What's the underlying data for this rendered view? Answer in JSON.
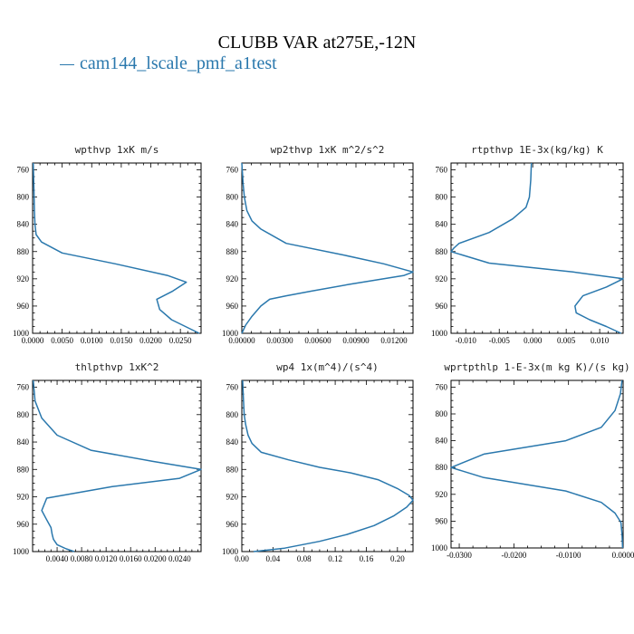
{
  "title": "CLUBB VAR at275E,-12N",
  "legend": {
    "label": "cam144_lscale_pmf_a1test",
    "color": "#2a78ad"
  },
  "chart_data": [
    {
      "type": "line",
      "title": "wpthvp  1xK m/s",
      "xlim": [
        0,
        0.0285
      ],
      "ylim": [
        750,
        1000
      ],
      "xticks": [
        0.0,
        0.005,
        0.01,
        0.015,
        0.02,
        0.025
      ],
      "xtick_labels": [
        "0.0000",
        "0.0050",
        "0.0100",
        "0.0150",
        "0.0200",
        "0.0250"
      ],
      "yticks": [
        760,
        800,
        840,
        880,
        920,
        960,
        1000
      ],
      "series": [
        {
          "x": [
            0.0001,
            0.0002,
            0.0003,
            0.0004,
            0.0006,
            0.0015,
            0.005,
            0.014,
            0.0228,
            0.026,
            0.0237,
            0.021,
            0.0215,
            0.0235,
            0.0282
          ],
          "y": [
            750,
            780,
            820,
            840,
            855,
            866,
            882,
            898,
            915,
            925,
            938,
            950,
            965,
            980,
            1000
          ]
        }
      ]
    },
    {
      "type": "line",
      "title": "wp2thvp  1xK m^2/s^2",
      "xlim": [
        0,
        0.0135
      ],
      "ylim": [
        750,
        1000
      ],
      "xticks": [
        0.0,
        0.003,
        0.006,
        0.009,
        0.012
      ],
      "xtick_labels": [
        "0.00000",
        "0.00300",
        "0.00600",
        "0.00900",
        "0.01200"
      ],
      "yticks": [
        760,
        800,
        840,
        880,
        920,
        960,
        1000
      ],
      "series": [
        {
          "x": [
            0.0,
            0.0001,
            0.0002,
            0.0004,
            0.0008,
            0.0015,
            0.0035,
            0.008,
            0.0112,
            0.0135,
            0.0128,
            0.0085,
            0.0055,
            0.0035,
            0.0022,
            0.0015,
            0.0008,
            0.0003,
            0.0
          ],
          "y": [
            750,
            780,
            800,
            820,
            835,
            847,
            868,
            885,
            898,
            910,
            915,
            928,
            938,
            945,
            950,
            960,
            975,
            988,
            1000
          ]
        }
      ]
    },
    {
      "type": "line",
      "title": "rtpthvp  1E-3x(kg/kg) K",
      "xlim": [
        -0.0122,
        0.0135
      ],
      "ylim": [
        750,
        1000
      ],
      "xticks": [
        -0.01,
        -0.005,
        0.0,
        0.005,
        0.01
      ],
      "xtick_labels": [
        "-0.010",
        "-0.005",
        "0.000",
        "0.005",
        "0.010"
      ],
      "yticks": [
        760,
        800,
        840,
        880,
        920,
        960,
        1000
      ],
      "series": [
        {
          "x": [
            -0.0002,
            -0.0003,
            -0.0005,
            -0.001,
            -0.003,
            -0.0065,
            -0.011,
            -0.0118,
            -0.0122,
            -0.0065,
            0.006,
            0.0135,
            0.011,
            0.0075,
            0.0063,
            0.0065,
            0.0085,
            0.011,
            0.0132
          ],
          "y": [
            750,
            775,
            800,
            815,
            832,
            852,
            868,
            875,
            880,
            897,
            910,
            920,
            932,
            945,
            960,
            970,
            980,
            990,
            1000
          ]
        }
      ]
    },
    {
      "type": "line",
      "title": "thlpthvp  1xK^2",
      "xlim": [
        0,
        0.0275
      ],
      "ylim": [
        750,
        1000
      ],
      "xticks": [
        0.004,
        0.008,
        0.012,
        0.016,
        0.02,
        0.024
      ],
      "xtick_labels": [
        "0.0040",
        "0.0080",
        "0.0120",
        "0.0160",
        "0.0200",
        "0.0240"
      ],
      "yticks": [
        760,
        800,
        840,
        880,
        920,
        960,
        1000
      ],
      "series": [
        {
          "x": [
            0.0001,
            0.0004,
            0.0015,
            0.004,
            0.0095,
            0.0195,
            0.0275,
            0.024,
            0.013,
            0.0023,
            0.0015,
            0.0022,
            0.003,
            0.0032,
            0.0034,
            0.004,
            0.0055,
            0.0068
          ],
          "y": [
            750,
            780,
            805,
            830,
            852,
            868,
            880,
            893,
            905,
            922,
            940,
            952,
            965,
            975,
            982,
            990,
            996,
            1000
          ]
        }
      ]
    },
    {
      "type": "line",
      "title": "wp4  1x(m^4)/(s^4)",
      "xlim": [
        0,
        0.22
      ],
      "ylim": [
        750,
        1000
      ],
      "xticks": [
        0.0,
        0.04,
        0.08,
        0.12,
        0.16,
        0.2
      ],
      "xtick_labels": [
        "0.00",
        "0.04",
        "0.08",
        "0.12",
        "0.16",
        "0.20"
      ],
      "yticks": [
        760,
        800,
        840,
        880,
        920,
        960,
        1000
      ],
      "series": [
        {
          "x": [
            0.001,
            0.002,
            0.003,
            0.005,
            0.008,
            0.013,
            0.025,
            0.06,
            0.1,
            0.14,
            0.175,
            0.2,
            0.215,
            0.22,
            0.212,
            0.195,
            0.17,
            0.135,
            0.1,
            0.055,
            0.015
          ],
          "y": [
            750,
            775,
            800,
            815,
            830,
            842,
            855,
            866,
            877,
            885,
            895,
            908,
            918,
            925,
            935,
            948,
            962,
            975,
            985,
            995,
            1000
          ]
        }
      ]
    },
    {
      "type": "line",
      "title": "wprtpthlp  1-E-3x(m kg K)/(s kg)",
      "xlim": [
        -0.0315,
        0.0
      ],
      "ylim": [
        750,
        1000
      ],
      "xticks": [
        -0.03,
        -0.02,
        -0.01,
        0.0
      ],
      "xtick_labels": [
        "-0.0300",
        "-0.0200",
        "-0.0100",
        "0.0000"
      ],
      "yticks": [
        760,
        800,
        840,
        880,
        920,
        960,
        1000
      ],
      "series": [
        {
          "x": [
            -0.0002,
            -0.0005,
            -0.0015,
            -0.004,
            -0.0105,
            -0.0255,
            -0.0315,
            -0.0255,
            -0.0105,
            -0.004,
            -0.0015,
            -0.0004,
            -0.0002,
            -0.0001
          ],
          "y": [
            750,
            770,
            795,
            820,
            840,
            860,
            880,
            895,
            915,
            932,
            948,
            962,
            980,
            1000
          ]
        }
      ]
    }
  ]
}
